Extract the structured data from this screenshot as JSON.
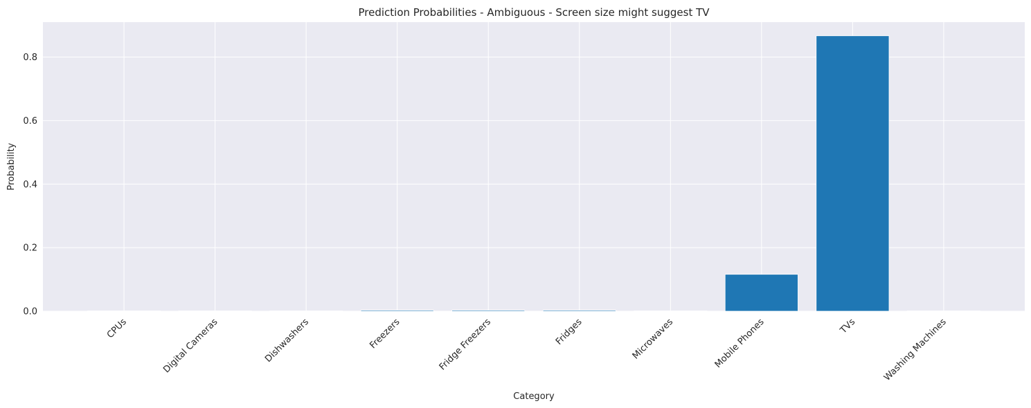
{
  "chart_data": {
    "type": "bar",
    "title": "Prediction Probabilities - Ambiguous - Screen size might suggest TV",
    "x_label": "Category",
    "y_label": "Probability",
    "categories": [
      "CPUs",
      "Digital Cameras",
      "Dishwashers",
      "Freezers",
      "Fridge Freezers",
      "Fridges",
      "Microwaves",
      "Mobile Phones",
      "TVs",
      "Washing Machines"
    ],
    "values": [
      0.001,
      0.001,
      0.001,
      0.003,
      0.003,
      0.003,
      0.001,
      0.116,
      0.867,
      0.001
    ],
    "color": "#1f77b4",
    "ylim": [
      0,
      0.91
    ],
    "yticks": [
      {
        "value": 0,
        "label": "0.0"
      },
      0.2,
      0.4,
      0.6,
      0.8
    ],
    "grid": true
  }
}
